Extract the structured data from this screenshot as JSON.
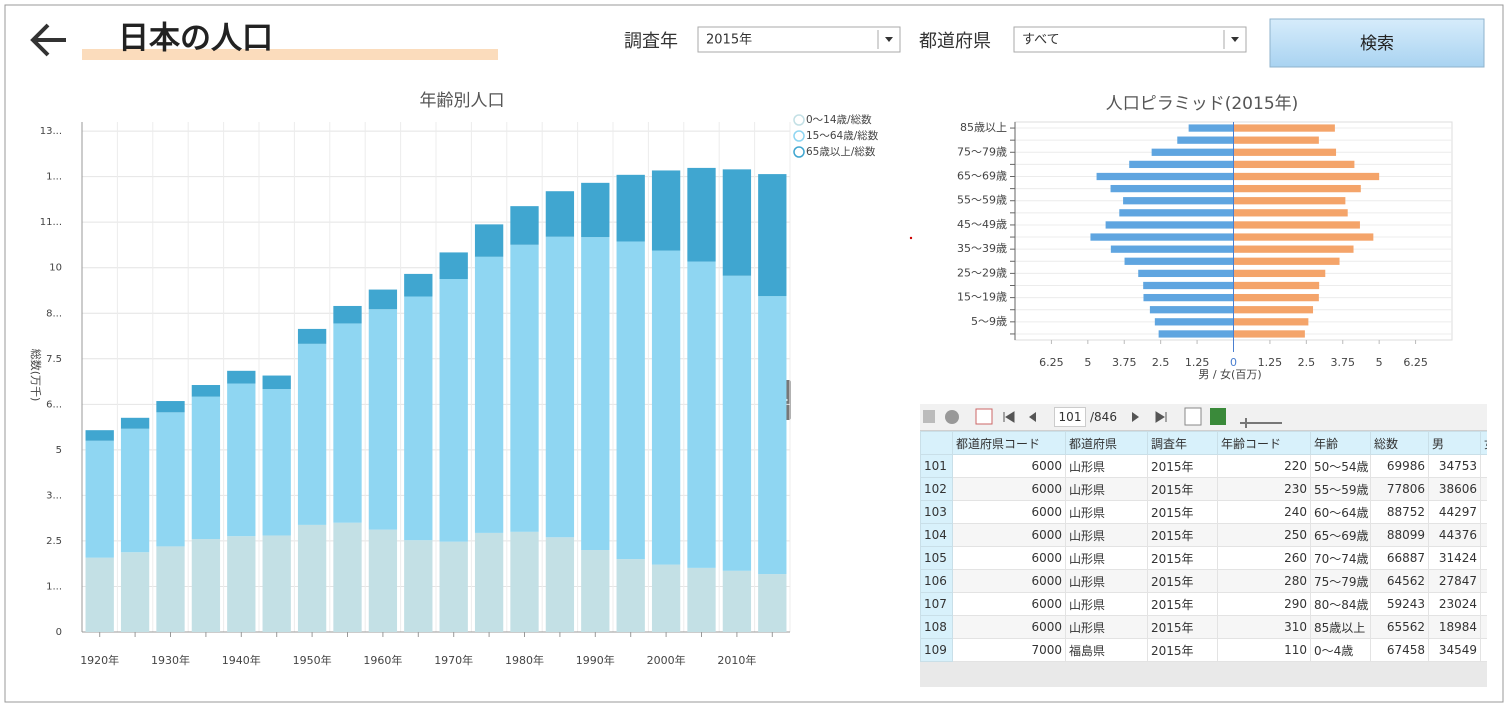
{
  "header": {
    "title": "日本の人口"
  },
  "filters": [
    {
      "label": "調査年",
      "value": "2015年"
    },
    {
      "label": "都道府県",
      "value": "すべて"
    }
  ],
  "search_button": "検索",
  "chart_data": [
    {
      "type": "bar",
      "title": "年齢別人口",
      "ylabel": "総数(万千)",
      "categories": [
        "1920年",
        null,
        "1930年",
        null,
        "1940年",
        null,
        "1950年",
        null,
        "1960年",
        null,
        "1970年",
        null,
        "1980年",
        null,
        "1990年",
        null,
        "2000年",
        null,
        "2010年",
        null
      ],
      "series": [
        {
          "name": "0～14歳/総数",
          "color": "#c3e0e5",
          "values": [
            2.04,
            2.19,
            2.35,
            2.55,
            2.63,
            2.65,
            2.94,
            3.0,
            2.81,
            2.52,
            2.48,
            2.72,
            2.75,
            2.6,
            2.25,
            2.0,
            1.85,
            1.76,
            1.68,
            1.59
          ]
        },
        {
          "name": "15～64歳/総数",
          "color": "#8fd6f2",
          "values": [
            3.21,
            3.39,
            3.68,
            3.91,
            4.19,
            4.02,
            4.97,
            5.47,
            6.05,
            6.69,
            7.21,
            7.58,
            7.88,
            8.25,
            8.59,
            8.72,
            8.62,
            8.41,
            8.1,
            7.63
          ]
        },
        {
          "name": "65歳以上/総数",
          "color": "#40a6d0",
          "values": [
            0.29,
            0.3,
            0.31,
            0.32,
            0.35,
            0.37,
            0.41,
            0.48,
            0.54,
            0.62,
            0.73,
            0.89,
            1.06,
            1.25,
            1.49,
            1.83,
            2.2,
            2.57,
            2.92,
            3.35
          ]
        }
      ],
      "ylim": [
        0,
        14
      ],
      "yticks": [
        0,
        {
          "value": 1.25,
          "label": "1..."
        },
        2.5,
        {
          "value": 3.75,
          "label": "3..."
        },
        5,
        {
          "value": 6.25,
          "label": "6..."
        },
        7.5,
        {
          "value": 8.75,
          "label": "8..."
        },
        10,
        {
          "value": 11.25,
          "label": "11..."
        },
        {
          "value": 12.5,
          "label": "1..."
        },
        {
          "value": 13.75,
          "label": "13..."
        }
      ],
      "grid": true,
      "legend": "top-right"
    },
    {
      "type": "pyramid",
      "title": "人口ピラミッド(2015年)",
      "xlabel": "男 / 女(百万)",
      "categories": [
        null,
        "5～9歳",
        null,
        "15～19歳",
        null,
        "25～29歳",
        null,
        "35～39歳",
        null,
        "45～49歳",
        null,
        "55～59歳",
        null,
        "65～69歳",
        null,
        "75～79歳",
        null,
        "85歳以上"
      ],
      "series": [
        {
          "color": "#5fa5e0",
          "values": [
            -2.57,
            -2.7,
            -2.87,
            -3.09,
            -3.1,
            -3.27,
            -3.74,
            -4.21,
            -4.91,
            -4.39,
            -3.92,
            -3.79,
            -4.22,
            -4.7,
            -3.58,
            -2.81,
            -1.93,
            -1.54
          ]
        },
        {
          "color": "#f4a46a",
          "values": [
            2.45,
            2.57,
            2.73,
            2.93,
            2.94,
            3.15,
            3.64,
            4.12,
            4.8,
            4.34,
            3.92,
            3.84,
            4.37,
            5.0,
            4.15,
            3.52,
            2.93,
            3.48
          ]
        }
      ],
      "xlim": [
        -7.5,
        7.5
      ],
      "xticks": [
        {
          "value": -6.25,
          "label": "6.25"
        },
        {
          "value": -5,
          "label": "5"
        },
        {
          "value": -3.75,
          "label": "3.75"
        },
        {
          "value": -2.5,
          "label": "2.5"
        },
        {
          "value": -1.25,
          "label": "1.25"
        },
        0,
        1.25,
        2.5,
        3.75,
        5,
        6.25
      ],
      "grid": true
    }
  ],
  "grid": {
    "page": 101,
    "total": "/846",
    "columns": [
      "都道府県コード",
      "都道府県",
      "調査年",
      "年齢コード",
      "年齢",
      "総数",
      "男",
      "女"
    ],
    "rows": [
      [
        101,
        6000,
        "山形県",
        "2015年",
        220,
        "50～54歳",
        69986,
        34753
      ],
      [
        102,
        6000,
        "山形県",
        "2015年",
        230,
        "55～59歳",
        77806,
        38606
      ],
      [
        103,
        6000,
        "山形県",
        "2015年",
        240,
        "60～64歳",
        88752,
        44297
      ],
      [
        104,
        6000,
        "山形県",
        "2015年",
        250,
        "65～69歳",
        88099,
        44376
      ],
      [
        105,
        6000,
        "山形県",
        "2015年",
        260,
        "70～74歳",
        66887,
        31424
      ],
      [
        106,
        6000,
        "山形県",
        "2015年",
        280,
        "75～79歳",
        64562,
        27847
      ],
      [
        107,
        6000,
        "山形県",
        "2015年",
        290,
        "80～84歳",
        59243,
        23024
      ],
      [
        108,
        6000,
        "山形県",
        "2015年",
        310,
        "85歳以上",
        65562,
        18984
      ],
      [
        109,
        7000,
        "福島県",
        "2015年",
        110,
        "0～4歳",
        67458,
        34549
      ]
    ]
  }
}
